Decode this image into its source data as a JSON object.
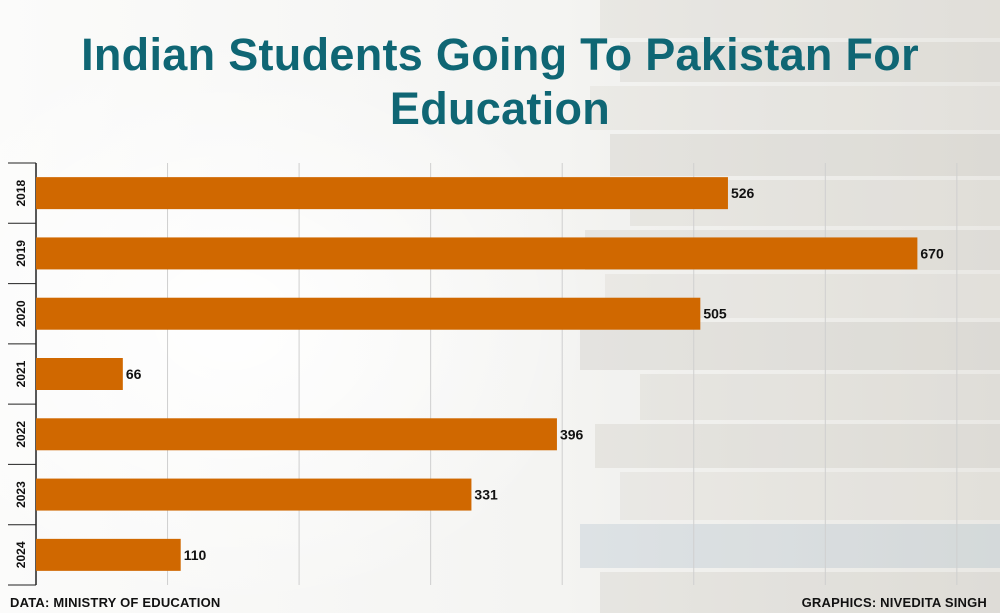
{
  "title": "Indian Students Going To Pakistan For Education",
  "footer": {
    "source": "DATA: MINISTRY OF EDUCATION",
    "credit": "GRAPHICS: NIVEDITA SINGH"
  },
  "colors": {
    "bar": "#d06800",
    "title": "#0f6674",
    "grid": "#cfcfcf",
    "axis": "#222222"
  },
  "chart_data": {
    "type": "bar",
    "orientation": "horizontal",
    "categories": [
      "2018",
      "2019",
      "2020",
      "2021",
      "2022",
      "2023",
      "2024"
    ],
    "values": [
      526,
      670,
      505,
      66,
      396,
      331,
      110
    ],
    "xlim": [
      0,
      700
    ],
    "grid": true,
    "legend": "none"
  }
}
